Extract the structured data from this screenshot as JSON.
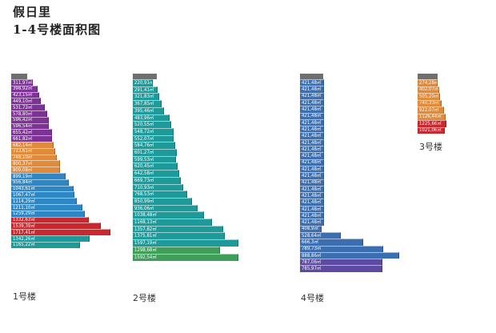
{
  "title": {
    "line1": "假日里",
    "line2": "1-4号楼面积图"
  },
  "colors": {
    "cap": "#6f6f6f",
    "purple": "#7d3393",
    "orange": "#e08a3b",
    "blue": "#2f86c5",
    "red": "#c8282e",
    "teal": "#1f9a9a",
    "green": "#3f9e5a",
    "steel": "#3d6fb0",
    "violet": "#5e4aa0"
  },
  "buildings": [
    {
      "name": "1号楼",
      "floors": [
        {
          "area": "311,97㎡",
          "color": "#7d3393"
        },
        {
          "area": "398,92㎡",
          "color": "#7d3393"
        },
        {
          "area": "423,15㎡",
          "color": "#7d3393"
        },
        {
          "area": "449,10㎡",
          "color": "#7d3393"
        },
        {
          "area": "531,72㎡",
          "color": "#7d3393"
        },
        {
          "area": "578,80㎡",
          "color": "#7d3393"
        },
        {
          "area": "596,42㎡",
          "color": "#7d3393"
        },
        {
          "area": "596,54㎡",
          "color": "#7d3393"
        },
        {
          "area": "655,42㎡",
          "color": "#7d3393"
        },
        {
          "area": "661,82㎡",
          "color": "#7d3393"
        },
        {
          "area": "682,14㎡",
          "color": "#e08a3b"
        },
        {
          "area": "713,61㎡",
          "color": "#e08a3b"
        },
        {
          "area": "748,10㎡",
          "color": "#e08a3b"
        },
        {
          "area": "800,37㎡",
          "color": "#e08a3b"
        },
        {
          "area": "809,08㎡",
          "color": "#e08a3b"
        },
        {
          "area": "899,19㎡",
          "color": "#2f86c5"
        },
        {
          "area": "956,84㎡",
          "color": "#2f86c5"
        },
        {
          "area": "1043,61㎡",
          "color": "#2f86c5"
        },
        {
          "area": "1067,47㎡",
          "color": "#2f86c5"
        },
        {
          "area": "1114,29㎡",
          "color": "#2f86c5"
        },
        {
          "area": "1211,10㎡",
          "color": "#2f86c5"
        },
        {
          "area": "1259,29㎡",
          "color": "#2f86c5"
        },
        {
          "area": "1332,63㎡",
          "color": "#c8282e"
        },
        {
          "area": "1539,39㎡",
          "color": "#c8282e"
        },
        {
          "area": "1717,41㎡",
          "color": "#c8282e"
        },
        {
          "area": "1342,26㎡",
          "color": "#1f9a9a"
        },
        {
          "area": "1165,22㎡",
          "color": "#1f9a9a"
        }
      ]
    },
    {
      "name": "2号楼",
      "floors": [
        {
          "area": "220,91㎡",
          "color": "#1f9a9a"
        },
        {
          "area": "291,41㎡",
          "color": "#1f9a9a"
        },
        {
          "area": "321,83㎡",
          "color": "#1f9a9a"
        },
        {
          "area": "367,85㎡",
          "color": "#1f9a9a"
        },
        {
          "area": "395,46㎡",
          "color": "#1f9a9a"
        },
        {
          "area": "483,96㎡",
          "color": "#1f9a9a"
        },
        {
          "area": "520,55㎡",
          "color": "#1f9a9a"
        },
        {
          "area": "548,72㎡",
          "color": "#1f9a9a"
        },
        {
          "area": "552,07㎡",
          "color": "#1f9a9a"
        },
        {
          "area": "584,76㎡",
          "color": "#1f9a9a"
        },
        {
          "area": "601,27㎡",
          "color": "#1f9a9a"
        },
        {
          "area": "599,53㎡",
          "color": "#1f9a9a"
        },
        {
          "area": "620,45㎡",
          "color": "#1f9a9a"
        },
        {
          "area": "642,58㎡",
          "color": "#1f9a9a"
        },
        {
          "area": "669,73㎡",
          "color": "#1f9a9a"
        },
        {
          "area": "710,93㎡",
          "color": "#1f9a9a"
        },
        {
          "area": "768,53㎡",
          "color": "#1f9a9a"
        },
        {
          "area": "850,99㎡",
          "color": "#1f9a9a"
        },
        {
          "area": "936,06㎡",
          "color": "#1f9a9a"
        },
        {
          "area": "1038,48㎡",
          "color": "#1f9a9a"
        },
        {
          "area": "1168,13㎡",
          "color": "#1f9a9a"
        },
        {
          "area": "1357,82㎡",
          "color": "#1f9a9a"
        },
        {
          "area": "1375,81㎡",
          "color": "#1f9a9a"
        },
        {
          "area": "1597,19㎡",
          "color": "#1f9a9a"
        },
        {
          "area": "1298,68㎡",
          "color": "#3f9e5a"
        },
        {
          "area": "1592,54㎡",
          "color": "#3f9e5a"
        }
      ]
    },
    {
      "name": "4号楼",
      "floors": [
        {
          "area": "421,48㎡",
          "color": "#3d6fb0"
        },
        {
          "area": "421,48㎡",
          "color": "#3d6fb0"
        },
        {
          "area": "421,48㎡",
          "color": "#3d6fb0"
        },
        {
          "area": "421,48㎡",
          "color": "#3d6fb0"
        },
        {
          "area": "421,48㎡",
          "color": "#3d6fb0"
        },
        {
          "area": "421,48㎡",
          "color": "#3d6fb0"
        },
        {
          "area": "421,48㎡",
          "color": "#3d6fb0"
        },
        {
          "area": "421,48㎡",
          "color": "#3d6fb0"
        },
        {
          "area": "421,48㎡",
          "color": "#3d6fb0"
        },
        {
          "area": "421,48㎡",
          "color": "#3d6fb0"
        },
        {
          "area": "421,48㎡",
          "color": "#3d6fb0"
        },
        {
          "area": "421,48㎡",
          "color": "#3d6fb0"
        },
        {
          "area": "421,48㎡",
          "color": "#3d6fb0"
        },
        {
          "area": "421,48㎡",
          "color": "#3d6fb0"
        },
        {
          "area": "421,48㎡",
          "color": "#3d6fb0"
        },
        {
          "area": "421,48㎡",
          "color": "#3d6fb0"
        },
        {
          "area": "421,48㎡",
          "color": "#3d6fb0"
        },
        {
          "area": "421,48㎡",
          "color": "#3d6fb0"
        },
        {
          "area": "421,48㎡",
          "color": "#3d6fb0"
        },
        {
          "area": "421,48㎡",
          "color": "#3d6fb0"
        },
        {
          "area": "421,48㎡",
          "color": "#3d6fb0"
        },
        {
          "area": "421,48㎡",
          "color": "#3d6fb0"
        },
        {
          "area": "408,9㎡",
          "color": "#3d6fb0"
        },
        {
          "area": "528,64㎡",
          "color": "#3d6fb0"
        },
        {
          "area": "666,3㎡",
          "color": "#3d6fb0"
        },
        {
          "area": "789,73㎡",
          "color": "#3d6fb0"
        },
        {
          "area": "888,86㎡",
          "color": "#3d6fb0"
        },
        {
          "area": "787,06㎡",
          "color": "#5e4aa0"
        },
        {
          "area": "785,97㎡",
          "color": "#5e4aa0"
        }
      ]
    },
    {
      "name": "3号楼",
      "floors": [
        {
          "area": "274,28㎡",
          "color": "#e08a3b"
        },
        {
          "area": "402,07㎡",
          "color": "#e08a3b"
        },
        {
          "area": "505,20㎡",
          "color": "#e08a3b"
        },
        {
          "area": "740,33㎡",
          "color": "#e08a3b"
        },
        {
          "area": "922,07㎡",
          "color": "#e08a3b"
        },
        {
          "area": "1126,44㎡",
          "color": "#e08a3b"
        },
        {
          "area": "1225,66㎡",
          "color": "#c8282e"
        },
        {
          "area": "1021,06㎡",
          "color": "#c8282e"
        }
      ]
    }
  ]
}
